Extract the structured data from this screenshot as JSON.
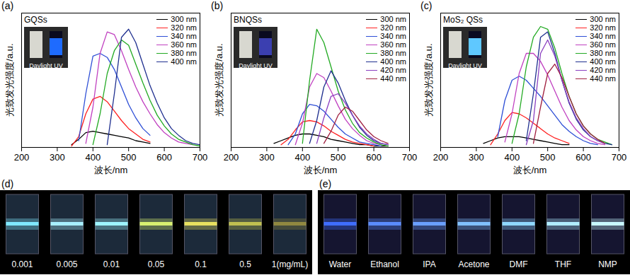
{
  "chart_data": [
    {
      "type": "line",
      "panel_label": "(a)",
      "title": "GQSs",
      "annotations": [
        "Daylight UV"
      ],
      "x_label": "波长/nm",
      "y_label": "光致发光强度/a.u.",
      "xlim": [
        200,
        700
      ],
      "xticks": [
        200,
        300,
        400,
        500,
        600,
        700
      ],
      "ylim": [
        0,
        100
      ],
      "tick_labels": "x",
      "legend": "top-right",
      "x": [
        320,
        340,
        360,
        380,
        400,
        420,
        440,
        460,
        480,
        500,
        520,
        540,
        560,
        580,
        600,
        620,
        640,
        660,
        680,
        700
      ],
      "series": [
        {
          "name": "300 nm",
          "color": "#000000",
          "values": [
            null,
            2,
            6,
            11,
            12,
            11,
            10,
            9,
            8,
            7,
            5,
            4,
            3,
            null,
            null,
            null,
            null,
            null,
            null,
            null
          ]
        },
        {
          "name": "320 nm",
          "color": "#ff2020",
          "values": [
            null,
            1,
            8,
            25,
            36,
            38,
            34,
            27,
            20,
            14,
            10,
            6,
            4,
            null,
            null,
            null,
            null,
            null,
            null,
            null
          ]
        },
        {
          "name": "340 nm",
          "color": "#2e4fd6",
          "values": [
            null,
            null,
            5,
            40,
            68,
            70,
            67,
            58,
            45,
            32,
            22,
            14,
            9,
            null,
            null,
            null,
            null,
            null,
            null,
            null
          ]
        },
        {
          "name": "360 nm",
          "color": "#c040c0",
          "values": [
            null,
            null,
            null,
            3,
            30,
            70,
            86,
            84,
            72,
            58,
            45,
            34,
            25,
            17,
            11,
            7,
            4,
            3,
            2,
            null
          ]
        },
        {
          "name": "380 nm",
          "color": "#22aa22",
          "values": [
            null,
            null,
            null,
            null,
            2,
            25,
            55,
            72,
            80,
            76,
            62,
            48,
            35,
            24,
            16,
            10,
            6,
            4,
            2,
            1
          ]
        },
        {
          "name": "400 nm",
          "color": "#1f2f8f",
          "values": [
            null,
            null,
            null,
            null,
            null,
            null,
            2,
            40,
            82,
            88,
            78,
            62,
            46,
            33,
            22,
            14,
            9,
            5,
            3,
            2
          ]
        }
      ]
    },
    {
      "type": "line",
      "panel_label": "(b)",
      "title": "BNQSs",
      "annotations": [
        "Daylight UV"
      ],
      "x_label": "波长/nm",
      "y_label": "光致发光强度/a.u.",
      "xlim": [
        200,
        700
      ],
      "xticks": [
        200,
        300,
        400,
        500,
        600,
        700
      ],
      "ylim": [
        0,
        100
      ],
      "tick_labels": "x",
      "legend": "top-right",
      "x": [
        320,
        340,
        360,
        380,
        400,
        420,
        440,
        460,
        480,
        500,
        520,
        540,
        560,
        580,
        600,
        620,
        640,
        660,
        680,
        700
      ],
      "series": [
        {
          "name": "300 nm",
          "color": "#000000",
          "values": [
            3,
            5,
            7,
            9,
            10,
            10,
            9,
            8,
            6,
            5,
            4,
            3,
            2,
            2,
            1,
            1,
            1,
            null,
            null,
            null
          ]
        },
        {
          "name": "320 nm",
          "color": "#ff2020",
          "values": [
            null,
            2,
            6,
            13,
            19,
            20,
            19,
            16,
            12,
            9,
            6,
            4,
            3,
            2,
            1,
            null,
            null,
            null,
            null,
            null
          ]
        },
        {
          "name": "340 nm",
          "color": "#2e4fd6",
          "values": [
            null,
            null,
            2,
            10,
            25,
            32,
            31,
            27,
            21,
            15,
            10,
            7,
            4,
            3,
            2,
            1,
            null,
            null,
            null,
            null
          ]
        },
        {
          "name": "360 nm",
          "color": "#c040c0",
          "values": [
            null,
            null,
            null,
            2,
            18,
            45,
            55,
            52,
            42,
            31,
            21,
            14,
            9,
            5,
            3,
            2,
            null,
            null,
            null,
            null
          ]
        },
        {
          "name": "380 nm",
          "color": "#22aa22",
          "values": [
            null,
            null,
            null,
            null,
            3,
            50,
            88,
            78,
            60,
            42,
            28,
            18,
            11,
            7,
            4,
            2,
            1,
            null,
            null,
            null
          ]
        },
        {
          "name": "400 nm",
          "color": "#1f2f8f",
          "values": [
            null,
            null,
            null,
            null,
            null,
            3,
            20,
            45,
            57,
            48,
            35,
            24,
            15,
            9,
            5,
            3,
            2,
            null,
            null,
            null
          ]
        },
        {
          "name": "420 nm",
          "color": "#8a3fc0",
          "values": [
            null,
            null,
            null,
            null,
            null,
            null,
            3,
            22,
            38,
            40,
            33,
            24,
            16,
            10,
            6,
            3,
            2,
            null,
            null,
            null
          ]
        },
        {
          "name": "440 nm",
          "color": "#a02040",
          "values": [
            null,
            null,
            null,
            null,
            null,
            null,
            null,
            3,
            12,
            24,
            30,
            27,
            20,
            13,
            8,
            5,
            3,
            null,
            null,
            null
          ]
        }
      ]
    },
    {
      "type": "line",
      "panel_label": "(c)",
      "title": "MoS₂ QSs",
      "annotations": [
        "Daylight UV"
      ],
      "x_label": "波长/nm",
      "y_label": "光致发光强度/a.u.",
      "xlim": [
        200,
        700
      ],
      "xticks": [
        200,
        300,
        400,
        500,
        600,
        700
      ],
      "ylim": [
        0,
        100
      ],
      "tick_labels": "x",
      "legend": "top-right",
      "x": [
        320,
        340,
        360,
        380,
        400,
        420,
        440,
        460,
        480,
        500,
        520,
        540,
        560,
        580,
        600,
        620,
        640,
        660,
        680,
        700
      ],
      "series": [
        {
          "name": "300 nm",
          "color": "#000000",
          "values": [
            3,
            5,
            7,
            8,
            8,
            8,
            7,
            6,
            5,
            4,
            3,
            2,
            2,
            null,
            null,
            null,
            null,
            null,
            null,
            null
          ]
        },
        {
          "name": "320 nm",
          "color": "#ff2020",
          "values": [
            null,
            2,
            10,
            20,
            26,
            25,
            22,
            18,
            14,
            10,
            7,
            5,
            3,
            null,
            null,
            null,
            null,
            null,
            null,
            null
          ]
        },
        {
          "name": "340 nm",
          "color": "#2e4fd6",
          "values": [
            null,
            null,
            8,
            35,
            50,
            53,
            50,
            44,
            38,
            31,
            24,
            17,
            12,
            8,
            5,
            3,
            2,
            null,
            null,
            null
          ]
        },
        {
          "name": "360 nm",
          "color": "#c040c0",
          "values": [
            null,
            null,
            null,
            4,
            25,
            55,
            70,
            70,
            64,
            54,
            42,
            30,
            20,
            13,
            8,
            5,
            3,
            2,
            null,
            null
          ]
        },
        {
          "name": "380 nm",
          "color": "#22aa22",
          "values": [
            null,
            null,
            null,
            null,
            3,
            25,
            60,
            82,
            90,
            88,
            74,
            55,
            38,
            25,
            16,
            10,
            6,
            4,
            2,
            null
          ]
        },
        {
          "name": "400 nm",
          "color": "#1f2f8f",
          "values": [
            null,
            null,
            null,
            null,
            null,
            null,
            5,
            40,
            82,
            86,
            70,
            50,
            33,
            21,
            13,
            8,
            5,
            3,
            2,
            null
          ]
        },
        {
          "name": "420 nm",
          "color": "#8a3fc0",
          "values": [
            null,
            null,
            null,
            null,
            null,
            null,
            2,
            20,
            70,
            80,
            68,
            50,
            34,
            22,
            14,
            8,
            5,
            3,
            null,
            null
          ]
        },
        {
          "name": "440 nm",
          "color": "#a02040",
          "values": [
            null,
            null,
            null,
            null,
            null,
            null,
            null,
            3,
            30,
            55,
            62,
            52,
            38,
            25,
            16,
            10,
            6,
            3,
            null,
            null
          ]
        }
      ]
    }
  ],
  "photos": [
    {
      "panel_label": "(d)",
      "labels": [
        "0.001",
        "0.005",
        "0.01",
        "0.05",
        "0.1",
        "0.5",
        "1(mg/mL)"
      ]
    },
    {
      "panel_label": "(e)",
      "labels": [
        "Water",
        "Ethanol",
        "IPA",
        "Acetone",
        "DMF",
        "THF",
        "NMP"
      ]
    }
  ]
}
